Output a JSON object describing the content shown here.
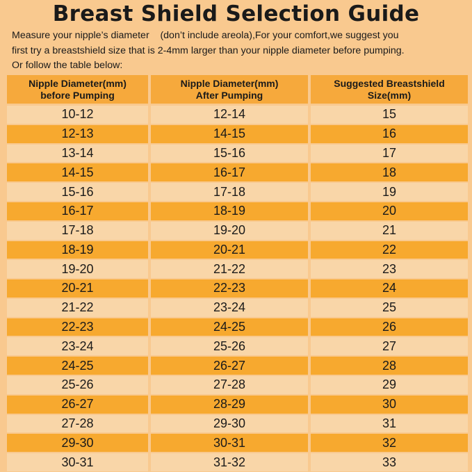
{
  "header": {
    "title": "Breast Shield Selection Guide",
    "description": [
      "Measure your nipple’s diameter    (don’t include areola),For your comfort,we suggest you",
      "first try a breastshield size that is 2-4mm larger than your nipple diameter before pumping.",
      "Or follow the table below:"
    ]
  },
  "table": {
    "columns": [
      [
        "Nipple Diameter(mm)",
        "before Pumping"
      ],
      [
        "Nipple Diameter(mm)",
        "After Pumping"
      ],
      [
        "Suggested Breastshield",
        "Size(mm)"
      ]
    ],
    "rows": [
      [
        "10-12",
        "12-14",
        "15"
      ],
      [
        "12-13",
        "14-15",
        "16"
      ],
      [
        "13-14",
        "15-16",
        "17"
      ],
      [
        "14-15",
        "16-17",
        "18"
      ],
      [
        "15-16",
        "17-18",
        "19"
      ],
      [
        "16-17",
        "18-19",
        "20"
      ],
      [
        "17-18",
        "19-20",
        "21"
      ],
      [
        "18-19",
        "20-21",
        "22"
      ],
      [
        "19-20",
        "21-22",
        "23"
      ],
      [
        "20-21",
        "22-23",
        "24"
      ],
      [
        "21-22",
        "23-24",
        "25"
      ],
      [
        "22-23",
        "24-25",
        "26"
      ],
      [
        "23-24",
        "25-26",
        "27"
      ],
      [
        "24-25",
        "26-27",
        "28"
      ],
      [
        "25-26",
        "27-28",
        "29"
      ],
      [
        "26-27",
        "28-29",
        "30"
      ],
      [
        "27-28",
        "29-30",
        "31"
      ],
      [
        "29-30",
        "30-31",
        "32"
      ],
      [
        "30-31",
        "31-32",
        "33"
      ]
    ]
  }
}
